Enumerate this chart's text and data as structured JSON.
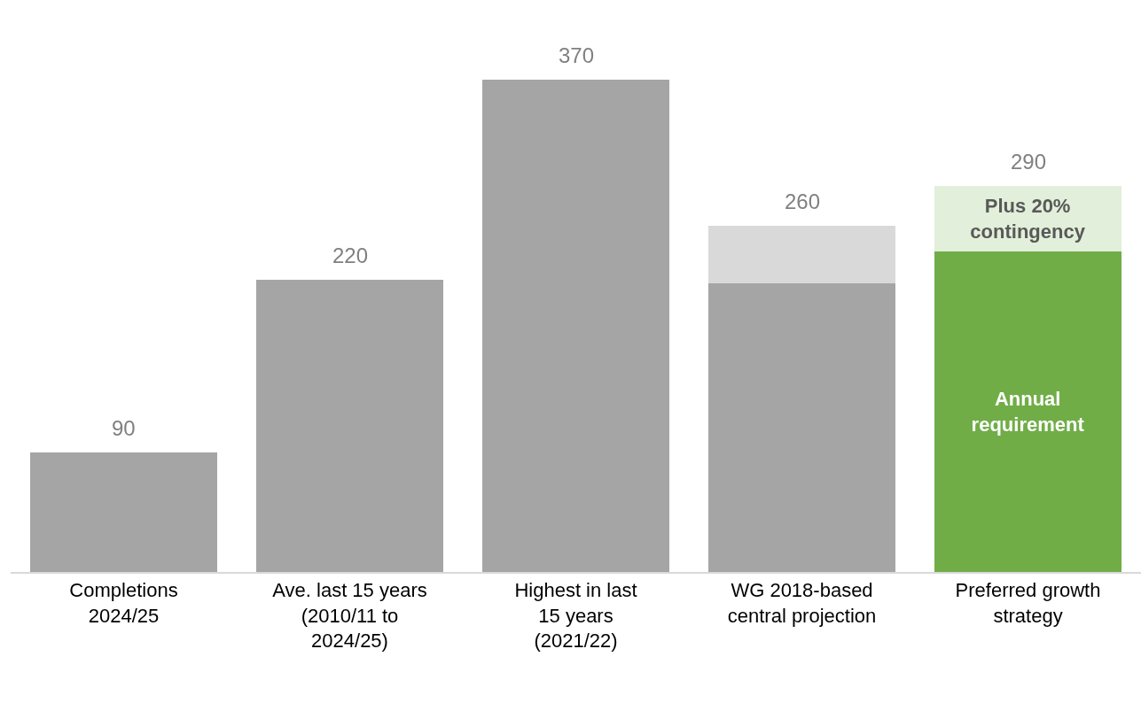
{
  "chart_data": {
    "type": "bar",
    "stacked": true,
    "categories": [
      "Completions\n2024/25",
      "Ave. last 15 years\n(2010/11 to\n2024/25)",
      "Highest in last\n15 years\n(2021/22)",
      "WG 2018-based\ncentral projection",
      "Preferred growth\nstrategy"
    ],
    "series": [
      {
        "colors": [
          "#a5a5a5",
          "#a5a5a5",
          "#a5a5a5",
          "#a5a5a5",
          "#a5a5a5"
        ],
        "values": [
          90,
          220,
          370,
          217,
          null
        ],
        "value_labels": [
          "90",
          "220",
          "370",
          null,
          null
        ]
      },
      {
        "name": "Annual requirement",
        "color": "#70ad47",
        "values": [
          null,
          null,
          null,
          null,
          241
        ]
      },
      {
        "color": "#d9d9d9",
        "values": [
          null,
          null,
          null,
          43,
          null
        ]
      },
      {
        "name": "Plus 20% contingency",
        "color": "#e2efda",
        "values": [
          null,
          null,
          null,
          null,
          49
        ]
      }
    ],
    "totals": [
      null,
      null,
      null,
      "260",
      "290"
    ],
    "legend": false
  }
}
